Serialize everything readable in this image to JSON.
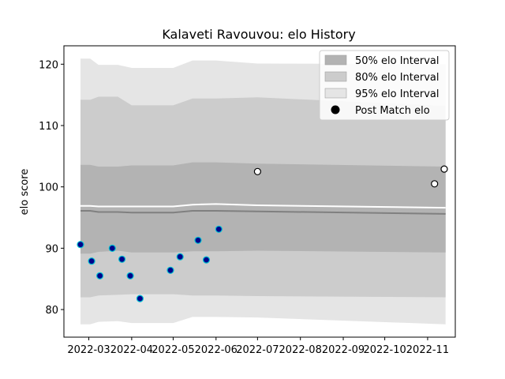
{
  "chart_data": {
    "type": "line",
    "title": "Kalaveti Ravouvou: elo History",
    "xlabel": "",
    "ylabel": "elo score",
    "ylim": [
      75.5,
      123
    ],
    "xlim": [
      "2022-02-11",
      "2022-11-21"
    ],
    "yticks": [
      80,
      90,
      100,
      110,
      120
    ],
    "xticks": [
      {
        "date": "2022-03-01",
        "label": "2022-03"
      },
      {
        "date": "2022-04-01",
        "label": "2022-04"
      },
      {
        "date": "2022-05-01",
        "label": "2022-05"
      },
      {
        "date": "2022-06-01",
        "label": "2022-06"
      },
      {
        "date": "2022-07-01",
        "label": "2022-07"
      },
      {
        "date": "2022-08-01",
        "label": "2022-08"
      },
      {
        "date": "2022-09-01",
        "label": "2022-09"
      },
      {
        "date": "2022-10-01",
        "label": "2022-10"
      },
      {
        "date": "2022-11-01",
        "label": "2022-11"
      }
    ],
    "grid": false,
    "legend": {
      "placement": "top-right",
      "entries": [
        {
          "label": "50% elo Interval",
          "color": "#b3b3b3",
          "kind": "patch"
        },
        {
          "label": "80% elo Interval",
          "color": "#cccccc",
          "kind": "patch"
        },
        {
          "label": "95% elo Interval",
          "color": "#e5e5e5",
          "kind": "patch"
        },
        {
          "label": "Post Match elo",
          "color": "#000000",
          "kind": "marker"
        }
      ]
    },
    "band_dates": [
      "2022-02-23",
      "2022-03-02",
      "2022-03-08",
      "2022-03-22",
      "2022-04-01",
      "2022-04-20",
      "2022-05-01",
      "2022-05-15",
      "2022-06-01",
      "2022-07-01",
      "2022-11-14"
    ],
    "bands": {
      "95": {
        "lower": [
          77.6,
          77.6,
          78.0,
          78.1,
          77.8,
          77.8,
          77.8,
          78.8,
          78.8,
          78.7,
          77.6
        ],
        "upper": [
          120.9,
          120.9,
          119.9,
          119.9,
          119.4,
          119.4,
          119.4,
          120.6,
          120.6,
          120.1,
          120.0
        ]
      },
      "80": {
        "lower": [
          82.0,
          82.0,
          82.3,
          82.4,
          82.5,
          82.5,
          82.5,
          82.3,
          82.3,
          82.2,
          82.0
        ],
        "upper": [
          114.2,
          114.2,
          114.7,
          114.7,
          113.3,
          113.3,
          113.3,
          114.4,
          114.4,
          114.6,
          113.2
        ]
      },
      "50": {
        "lower": [
          89.1,
          89.1,
          89.4,
          89.6,
          89.3,
          89.3,
          89.3,
          89.5,
          89.5,
          89.6,
          89.3
        ],
        "upper": [
          103.6,
          103.6,
          103.3,
          103.3,
          103.5,
          103.5,
          103.5,
          104.0,
          104.0,
          103.8,
          103.3
        ]
      }
    },
    "median_line": {
      "color": "#808080",
      "values": [
        96.1,
        96.1,
        95.9,
        95.9,
        95.8,
        95.8,
        95.8,
        96.1,
        96.1,
        96.0,
        95.6
      ]
    },
    "mean_line": {
      "color": "#ffffff",
      "values": [
        96.9,
        96.9,
        96.8,
        96.8,
        96.8,
        96.8,
        96.8,
        97.1,
        97.2,
        97.0,
        96.6
      ]
    },
    "series": [
      {
        "marker_face": "#00008b",
        "marker_edge": "#00c0d0",
        "points": [
          {
            "date": "2022-02-23",
            "y": 90.6
          },
          {
            "date": "2022-03-03",
            "y": 87.9
          },
          {
            "date": "2022-03-09",
            "y": 85.5
          },
          {
            "date": "2022-03-18",
            "y": 90.0
          },
          {
            "date": "2022-03-25",
            "y": 88.2
          },
          {
            "date": "2022-03-31",
            "y": 85.5
          },
          {
            "date": "2022-04-07",
            "y": 81.8
          },
          {
            "date": "2022-04-29",
            "y": 86.4
          },
          {
            "date": "2022-05-06",
            "y": 88.6
          },
          {
            "date": "2022-05-19",
            "y": 91.3
          },
          {
            "date": "2022-05-25",
            "y": 88.1
          },
          {
            "date": "2022-06-03",
            "y": 93.1
          }
        ]
      },
      {
        "name": "Post Match elo",
        "marker_face": "#ffffff",
        "marker_edge": "#000000",
        "points": [
          {
            "date": "2022-07-01",
            "y": 102.5
          },
          {
            "date": "2022-11-06",
            "y": 100.5
          },
          {
            "date": "2022-11-13",
            "y": 102.9
          }
        ]
      }
    ]
  }
}
